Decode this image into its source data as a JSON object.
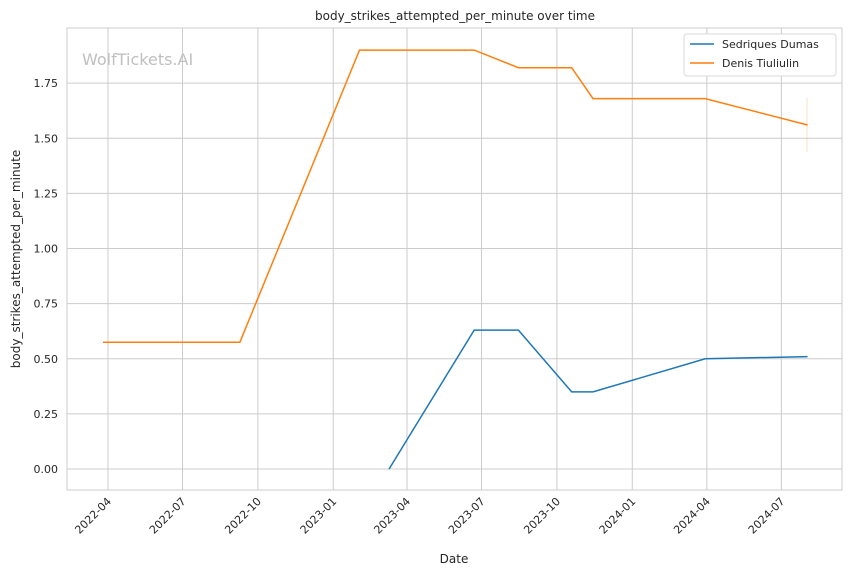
{
  "chart_data": {
    "type": "line",
    "title": "body_strikes_attempted_per_minute over time",
    "xlabel": "Date",
    "ylabel": "body_strikes_attempted_per_minute",
    "watermark": "WolfTickets.AI",
    "xlim": [
      "2022-02-10",
      "2024-09-13"
    ],
    "ylim": [
      -0.095,
      2.0
    ],
    "grid": true,
    "legend_placement": "top-right",
    "x_ticks": [
      "2022-04",
      "2022-07",
      "2022-10",
      "2023-01",
      "2023-04",
      "2023-07",
      "2023-10",
      "2024-01",
      "2024-04",
      "2024-07"
    ],
    "y_ticks": [
      "0.00",
      "0.25",
      "0.50",
      "0.75",
      "1.00",
      "1.25",
      "1.50",
      "1.75"
    ],
    "series": [
      {
        "name": "Sedriques Dumas",
        "color": "#1f77b4",
        "x": [
          "2023-03-10",
          "2023-06-22",
          "2023-08-15",
          "2023-10-19",
          "2023-11-14",
          "2024-03-30",
          "2024-08-02"
        ],
        "y": [
          0.0,
          0.63,
          0.63,
          0.35,
          0.35,
          0.5,
          0.51
        ]
      },
      {
        "name": "Denis Tiuliulin",
        "color": "#ff7f0e",
        "x": [
          "2022-03-26",
          "2022-09-09",
          "2023-02-02",
          "2023-06-22",
          "2023-08-15",
          "2023-10-19",
          "2023-11-14",
          "2024-03-30",
          "2024-08-02"
        ],
        "y": [
          0.575,
          0.575,
          1.9,
          1.9,
          1.82,
          1.82,
          1.68,
          1.68,
          1.56
        ]
      }
    ]
  }
}
